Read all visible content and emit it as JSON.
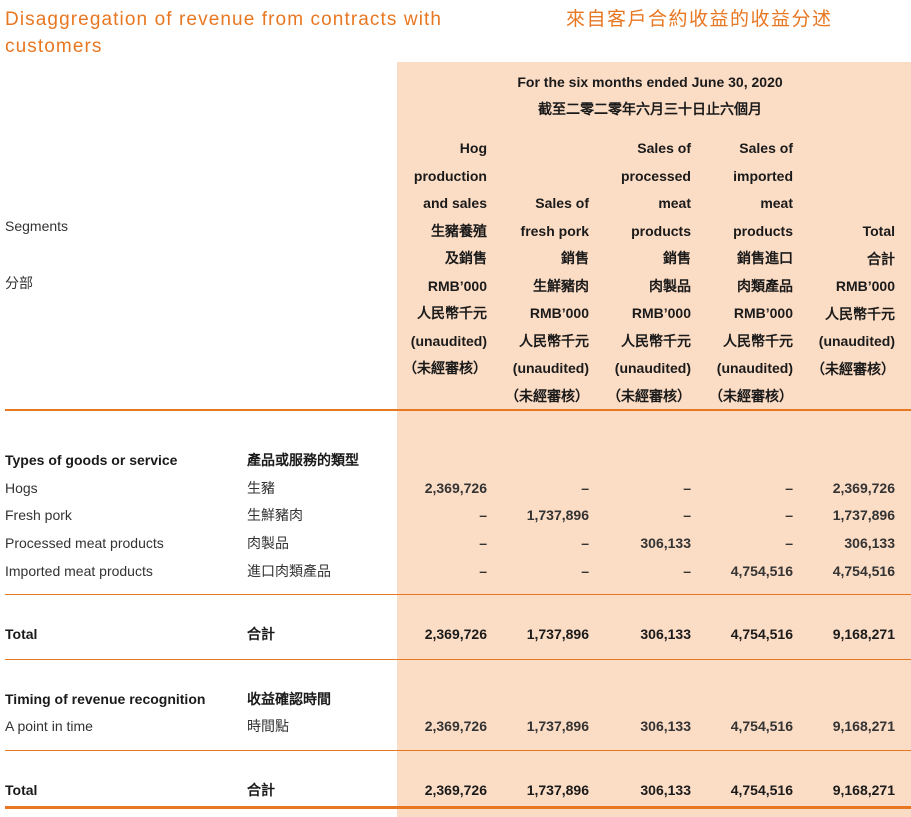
{
  "title": {
    "en": "Disaggregation of revenue from contracts with customers",
    "zh": "來自客戶合約收益的收益分述"
  },
  "period": {
    "en": "For the six months ended June 30, 2020",
    "zh": "截至二零二零年六月三十日止六個月"
  },
  "segments": {
    "en": "Segments",
    "zh": "分部"
  },
  "columns": [
    {
      "lines": [
        "Hog",
        "production",
        "and sales",
        "生豬養殖",
        "及銷售",
        "RMB’000",
        "人民幣千元",
        "(unaudited)",
        "（未經審核）"
      ]
    },
    {
      "lines": [
        "",
        "",
        "Sales of",
        "fresh pork",
        "銷售",
        "生鮮豬肉",
        "RMB’000",
        "人民幣千元",
        "(unaudited)",
        "（未經審核）"
      ]
    },
    {
      "lines": [
        "Sales of",
        "processed",
        "meat",
        "products",
        "銷售",
        "肉製品",
        "RMB’000",
        "人民幣千元",
        "(unaudited)",
        "（未經審核）"
      ]
    },
    {
      "lines": [
        "Sales of",
        "imported",
        "meat",
        "products",
        "銷售進口",
        "肉類產品",
        "RMB’000",
        "人民幣千元",
        "(unaudited)",
        "（未經審核）"
      ]
    },
    {
      "lines": [
        "Total",
        "合計",
        "RMB’000",
        "人民幣千元",
        "(unaudited)",
        "（未經審核）"
      ]
    }
  ],
  "rows": [
    {
      "en": "Types of goods or service",
      "zh": "產品或服務的類型",
      "style": "bold",
      "values": [
        "",
        "",
        "",
        "",
        ""
      ]
    },
    {
      "en": "Hogs",
      "zh": "生豬",
      "style": "plain",
      "values": [
        "2,369,726",
        "–",
        "–",
        "–",
        "2,369,726"
      ]
    },
    {
      "en": "Fresh pork",
      "zh": "生鮮豬肉",
      "style": "plain",
      "values": [
        "–",
        "1,737,896",
        "–",
        "–",
        "1,737,896"
      ]
    },
    {
      "en": "Processed meat products",
      "zh": "肉製品",
      "style": "plain",
      "values": [
        "–",
        "–",
        "306,133",
        "–",
        "306,133"
      ]
    },
    {
      "en": "Imported meat products",
      "zh": "進口肉類產品",
      "style": "plain",
      "values": [
        "–",
        "–",
        "–",
        "4,754,516",
        "4,754,516"
      ]
    },
    {
      "en": "Total",
      "zh": "合計",
      "style": "bold",
      "values": [
        "2,369,726",
        "1,737,896",
        "306,133",
        "4,754,516",
        "9,168,271"
      ]
    },
    {
      "en": "Timing of revenue recognition",
      "zh": "收益確認時間",
      "style": "bold",
      "values": [
        "",
        "",
        "",
        "",
        ""
      ]
    },
    {
      "en": "A point in time",
      "zh": "時間點",
      "style": "plain",
      "values": [
        "2,369,726",
        "1,737,896",
        "306,133",
        "4,754,516",
        "9,168,271"
      ]
    },
    {
      "en": "Total",
      "zh": "合計",
      "style": "bold",
      "values": [
        "2,369,726",
        "1,737,896",
        "306,133",
        "4,754,516",
        "9,168,271"
      ]
    }
  ],
  "colors": {
    "accent": "#e87722",
    "shade": "#fbdcc5"
  }
}
